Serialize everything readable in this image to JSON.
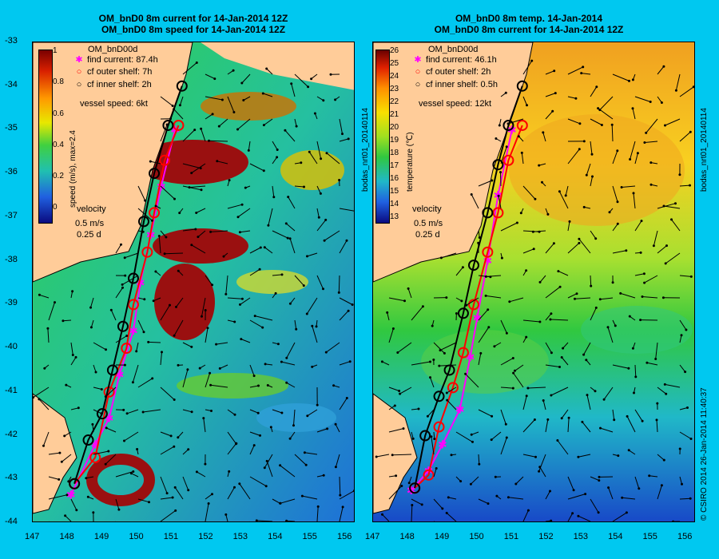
{
  "left": {
    "title_line1": "OM_bnD0 8m current for 14-Jan-2014 12Z",
    "title_line2": "OM_bnD0 8m speed for 14-Jan-2014 12Z",
    "model_label": "OM_bnD00d",
    "legend": [
      {
        "label": "find current: 87.4h",
        "color": "#ff00ff",
        "marker": "star"
      },
      {
        "label": "cf outer shelf: 7h",
        "color": "#ff0000",
        "marker": "circle"
      },
      {
        "label": "cf inner shelf: 2h",
        "color": "#000000",
        "marker": "circle"
      }
    ],
    "vessel_speed": "vessel speed: 6kt",
    "colorbar_label": "speed (m/s), max=2.4",
    "colorbar_ticks": [
      "1",
      "0.8",
      "0.6",
      "0.4",
      "0.2",
      "0"
    ],
    "velocity_label": "velocity",
    "velocity_scale1": "0.5 m/s",
    "velocity_scale2": "0.25 d"
  },
  "right": {
    "title_line1": "OM_bnD0 8m temp. 14-Jan-2014",
    "title_line2": "OM_bnD0 8m current for 14-Jan-2014 12Z",
    "model_label": "OM_bnD00d",
    "legend": [
      {
        "label": "find current: 46.1h",
        "color": "#ff00ff",
        "marker": "star"
      },
      {
        "label": "cf outer shelf: 2h",
        "color": "#ff0000",
        "marker": "circle"
      },
      {
        "label": "cf inner shelf: 0.5h",
        "color": "#000000",
        "marker": "circle"
      }
    ],
    "vessel_speed": "vessel speed: 12kt",
    "colorbar_label": "temperature (℃)",
    "colorbar_ticks": [
      "26",
      "25",
      "24",
      "23",
      "22",
      "21",
      "20",
      "19",
      "18",
      "17",
      "16",
      "15",
      "14",
      "13"
    ],
    "velocity_label": "velocity",
    "velocity_scale1": "0.5 m/s",
    "velocity_scale2": "0.25 d"
  },
  "lat_ticks": [
    "-33",
    "-34",
    "-35",
    "-36",
    "-37",
    "-38",
    "-39",
    "-40",
    "-41",
    "-42",
    "-43",
    "-44"
  ],
  "lon_ticks": [
    "147",
    "148",
    "149",
    "150",
    "151",
    "152",
    "153",
    "154",
    "155",
    "156"
  ],
  "side_label_left": "bodas_nrt01_20140114",
  "side_label_right": "bodas_nrt01_20140114",
  "footer_right": "© CSIRO 2014   26-Jan-2014 11:40:37",
  "chart_data": {
    "type": "map",
    "extent": {
      "lon": [
        147,
        156.3
      ],
      "lat": [
        -44,
        -33
      ]
    },
    "routes_left": {
      "find_current": [
        [
          148.1,
          -43.35
        ],
        [
          148.8,
          -42.2
        ],
        [
          149.2,
          -41.6
        ],
        [
          149.5,
          -40.6
        ],
        [
          149.9,
          -39.6
        ],
        [
          150.1,
          -38.5
        ],
        [
          150.4,
          -37.4
        ],
        [
          150.7,
          -36.3
        ],
        [
          151.1,
          -35.0
        ]
      ],
      "outer_shelf": [
        [
          148.2,
          -43.1
        ],
        [
          148.8,
          -42.5
        ],
        [
          149.2,
          -41.0
        ],
        [
          149.7,
          -40.0
        ],
        [
          149.9,
          -39.0
        ],
        [
          150.3,
          -37.8
        ],
        [
          150.5,
          -36.9
        ],
        [
          150.8,
          -35.7
        ],
        [
          151.2,
          -34.9
        ]
      ],
      "inner_shelf": [
        [
          148.2,
          -43.1
        ],
        [
          148.6,
          -42.1
        ],
        [
          149.0,
          -41.5
        ],
        [
          149.3,
          -40.5
        ],
        [
          149.6,
          -39.5
        ],
        [
          149.9,
          -38.4
        ],
        [
          150.2,
          -37.1
        ],
        [
          150.5,
          -36.0
        ],
        [
          150.9,
          -34.9
        ],
        [
          151.3,
          -34.0
        ]
      ]
    },
    "routes_right": {
      "find_current": [
        [
          148.1,
          -43.25
        ],
        [
          148.6,
          -42.8
        ],
        [
          149.0,
          -42.2
        ],
        [
          149.5,
          -41.4
        ],
        [
          149.8,
          -40.2
        ],
        [
          150.0,
          -39.3
        ],
        [
          150.3,
          -38.0
        ],
        [
          150.6,
          -36.5
        ],
        [
          151.0,
          -35.0
        ]
      ],
      "outer_shelf": [
        [
          148.2,
          -43.2
        ],
        [
          148.6,
          -42.9
        ],
        [
          148.9,
          -41.8
        ],
        [
          149.3,
          -40.9
        ],
        [
          149.6,
          -40.1
        ],
        [
          149.9,
          -39.0
        ],
        [
          150.3,
          -37.8
        ],
        [
          150.6,
          -36.9
        ],
        [
          150.9,
          -35.7
        ],
        [
          151.3,
          -34.9
        ]
      ],
      "inner_shelf": [
        [
          148.2,
          -43.2
        ],
        [
          148.5,
          -42.0
        ],
        [
          148.9,
          -41.1
        ],
        [
          149.2,
          -40.5
        ],
        [
          149.6,
          -39.2
        ],
        [
          149.9,
          -38.1
        ],
        [
          150.3,
          -36.9
        ],
        [
          150.6,
          -35.8
        ],
        [
          150.9,
          -34.9
        ],
        [
          151.3,
          -34.0
        ]
      ]
    }
  }
}
